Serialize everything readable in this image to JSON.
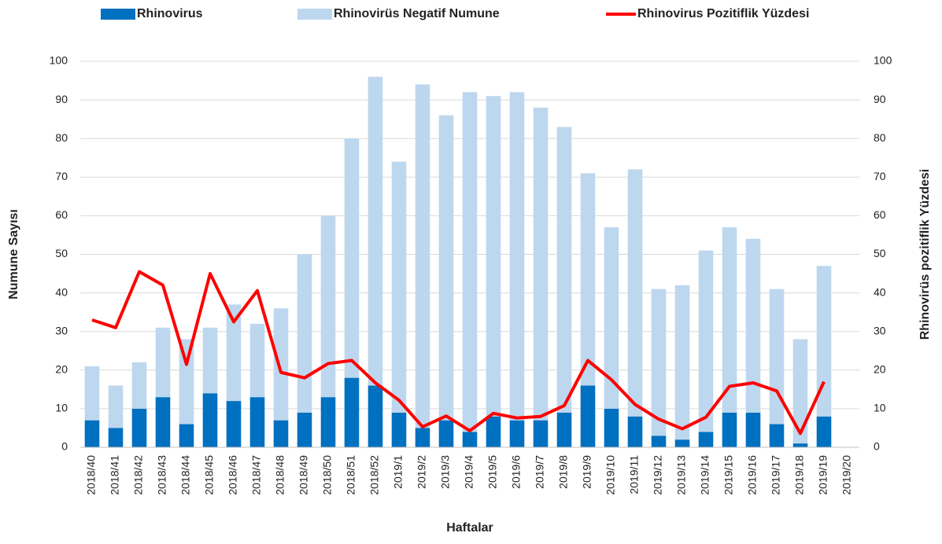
{
  "chart_data": {
    "type": "bar",
    "x_label": "Haftalar",
    "y_label": "Numune Sayısı",
    "y2_label": "Rhinovirüs pozitiflik Yüzdesi",
    "categories": [
      "2018/40",
      "2018/41",
      "2018/42",
      "2018/43",
      "2018/44",
      "2018/45",
      "2018/46",
      "2018/47",
      "2018/48",
      "2018/49",
      "2018/50",
      "2018/51",
      "2018/52",
      "2019/1",
      "2019/2",
      "2019/3",
      "2019/4",
      "2019/5",
      "2019/6",
      "2019/7",
      "2019/8",
      "2019/9",
      "2019/10",
      "2019/11",
      "2019/12",
      "2019/13",
      "2019/14",
      "2019/15",
      "2019/16",
      "2019/17",
      "2019/18",
      "2019/19",
      "2019/20"
    ],
    "series": [
      {
        "name": "Rhinovirus",
        "color": "#0070c0",
        "values": [
          7,
          5,
          10,
          13,
          6,
          14,
          12,
          13,
          7,
          9,
          13,
          18,
          16,
          9,
          5,
          7,
          4,
          8,
          7,
          7,
          9,
          16,
          10,
          8,
          3,
          2,
          4,
          9,
          9,
          6,
          1,
          8,
          null
        ]
      },
      {
        "name": "Rhinovirüs Negatif Numune",
        "color": "#bdd7ee",
        "values": [
          14,
          11,
          12,
          18,
          22,
          17,
          25,
          19,
          29,
          41,
          47,
          62,
          80,
          65,
          89,
          79,
          88,
          83,
          85,
          81,
          74,
          55,
          47,
          64,
          38,
          40,
          47,
          48,
          45,
          35,
          27,
          39,
          null
        ]
      },
      {
        "name": "Rhinovirus Pozitiflik Yüzdesi",
        "color": "#ff0000",
        "type": "line",
        "axis": "y2",
        "values": [
          33,
          31,
          45.5,
          42,
          21.5,
          45,
          32.5,
          40.6,
          19.4,
          18,
          21.7,
          22.5,
          16.7,
          12.2,
          5.3,
          8.1,
          4.3,
          8.8,
          7.6,
          8,
          10.8,
          22.5,
          17.5,
          11.1,
          7.3,
          4.8,
          7.8,
          15.8,
          16.7,
          14.6,
          3.6,
          17,
          null
        ]
      }
    ],
    "ylim": [
      0,
      100
    ],
    "yticks": [
      0,
      10,
      20,
      30,
      40,
      50,
      60,
      70,
      80,
      90,
      100
    ],
    "y2lim": [
      0,
      100
    ],
    "y2ticks": [
      0,
      10,
      20,
      30,
      40,
      50,
      60,
      70,
      80,
      90,
      100
    ],
    "grid": true,
    "legend": "top",
    "stacked": true
  }
}
